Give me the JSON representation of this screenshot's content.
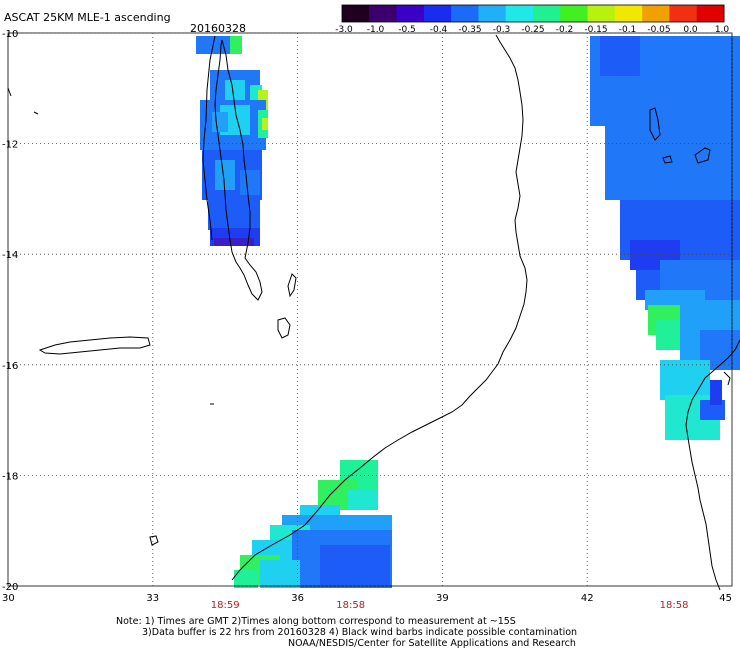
{
  "title": "ASCAT 25KM MLE-1 ascending",
  "date": "20160328",
  "colorbar": {
    "labels": [
      "-3.0",
      "-1.0",
      "-0.5",
      "-0.4",
      "-0.35",
      "-0.3",
      "-0.25",
      "-0.2",
      "-0.15",
      "-0.1",
      "-0.05",
      "0.0",
      "1.0"
    ],
    "colors": [
      "#200020",
      "#3c006e",
      "#3a00c8",
      "#1a2cf0",
      "#1a6cf8",
      "#20b0f8",
      "#20e8e8",
      "#20f090",
      "#40f020",
      "#b8f010",
      "#f0e800",
      "#f0a000",
      "#f03010",
      "#e00000"
    ]
  },
  "map": {
    "lon_range": [
      30,
      45
    ],
    "lat_range": [
      -20,
      -10
    ],
    "lon_ticks": [
      "30",
      "33",
      "36",
      "39",
      "42",
      "45"
    ],
    "lat_ticks": [
      "-10",
      "-12",
      "-14",
      "-16",
      "-18",
      "-20"
    ],
    "pass_times": [
      {
        "label": "18:59",
        "lon": 34.5
      },
      {
        "label": "18:58",
        "lon": 37.1
      },
      {
        "label": "18:58",
        "lon": 43.8
      }
    ]
  },
  "notes": [
    "Note: 1) Times are GMT 2)Times along bottom correspond to measurement at ~15S",
    "3)Data buffer is 22 hrs from 20160328 4) Black wind barbs indicate possible contamination",
    "NOAA/NESDIS/Center for Satellite Applications and Research"
  ]
}
